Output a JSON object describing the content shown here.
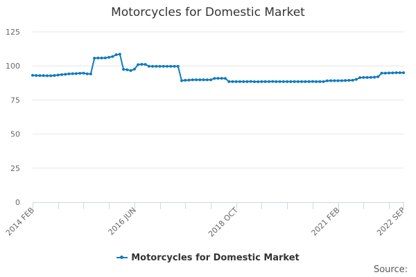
{
  "title": "Motorcycles for Domestic Market",
  "legend": {
    "label": "Motorcycles for Domestic Market"
  },
  "source_label": "Source:",
  "colors": {
    "series": "#0f7bbf",
    "grid": "#e6e6e6",
    "axis": "#ccd6eb",
    "text": "#333333"
  },
  "chart_data": {
    "type": "line",
    "title": "Motorcycles for Domestic Market",
    "xlabel": "",
    "ylabel": "",
    "ylim": [
      0,
      125
    ],
    "yticks": [
      0,
      25,
      50,
      75,
      100,
      125
    ],
    "xtick_labels": [
      "2014 FEB",
      "2016 JUN",
      "2018 OCT",
      "2021 FEB",
      "2022 SEP"
    ],
    "grid": true,
    "legend_position": "bottom",
    "x_start": "2014-02",
    "x_end": "2022-09",
    "frequency": "monthly",
    "series": [
      {
        "name": "Motorcycles for Domestic Market",
        "values": [
          93.1,
          93.0,
          92.9,
          92.9,
          92.8,
          92.8,
          93.0,
          93.3,
          93.6,
          93.9,
          94.2,
          94.3,
          94.4,
          94.6,
          94.7,
          94.2,
          94.1,
          105.7,
          105.8,
          105.8,
          105.9,
          106.3,
          106.9,
          108.2,
          108.6,
          97.5,
          97.2,
          96.6,
          97.6,
          100.9,
          101.2,
          101.1,
          99.8,
          99.7,
          99.7,
          99.7,
          99.7,
          99.7,
          99.7,
          99.7,
          99.7,
          89.2,
          89.5,
          89.6,
          89.8,
          89.8,
          89.8,
          89.8,
          89.8,
          89.8,
          90.8,
          90.9,
          90.9,
          90.8,
          88.5,
          88.5,
          88.5,
          88.5,
          88.5,
          88.5,
          88.6,
          88.4,
          88.4,
          88.5,
          88.5,
          88.5,
          88.6,
          88.5,
          88.5,
          88.5,
          88.5,
          88.5,
          88.5,
          88.5,
          88.5,
          88.5,
          88.5,
          88.6,
          88.5,
          88.5,
          88.5,
          89.1,
          89.2,
          89.2,
          89.2,
          89.2,
          89.3,
          89.4,
          89.5,
          90.1,
          91.4,
          91.5,
          91.5,
          91.6,
          91.7,
          92.1,
          94.7,
          94.7,
          94.8,
          94.9,
          95.0,
          95.0,
          95.0
        ]
      }
    ]
  }
}
